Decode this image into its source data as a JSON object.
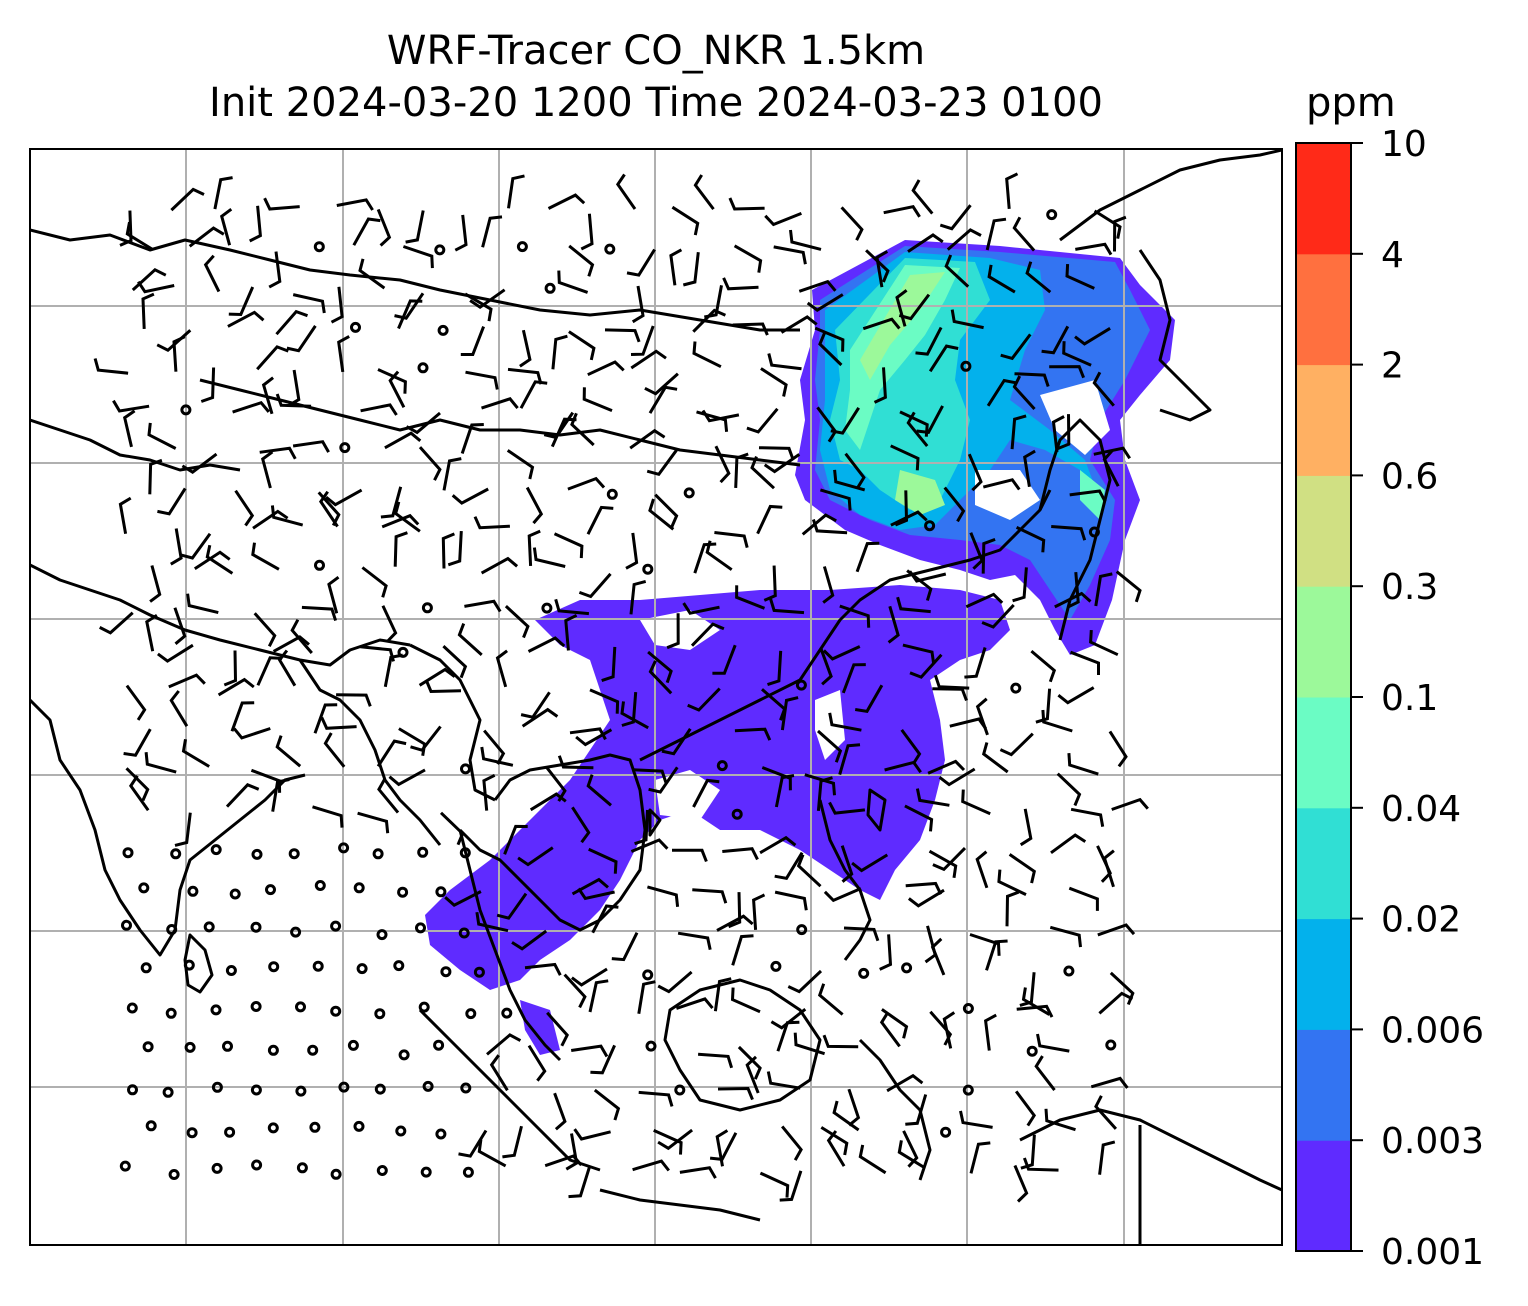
{
  "title": {
    "line1": "WRF-Tracer CO_NKR 1.5km",
    "line2": "Init 2024-03-20 1200 Time 2024-03-23 0100"
  },
  "colorbar": {
    "unit": "ppm",
    "levels": [
      "0.001",
      "0.003",
      "0.006",
      "0.02",
      "0.04",
      "0.1",
      "0.3",
      "0.6",
      "2",
      "4",
      "10"
    ],
    "colors": [
      "#5f2bff",
      "#3374f2",
      "#03b1ec",
      "#30dfd4",
      "#6bfcc4",
      "#9cf99a",
      "#d0e083",
      "#ffb062",
      "#ff703f",
      "#ff2a18"
    ]
  },
  "map": {
    "field": "CO_NKR tracer",
    "gridlines": true,
    "wind_barbs": true,
    "coastline_color": "#000000",
    "grid_color": "#b0b0b0"
  }
}
